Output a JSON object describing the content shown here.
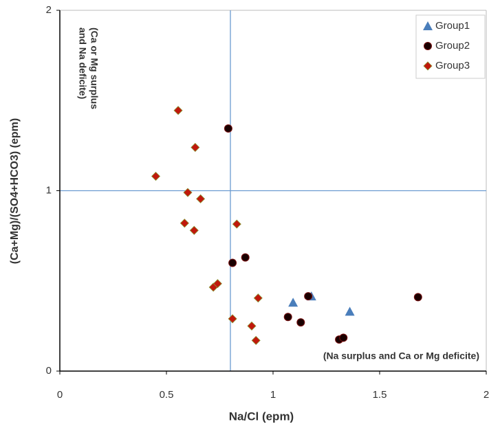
{
  "chart_data": {
    "type": "scatter",
    "x_label": "Na/Cl (epm)",
    "y_label": "(Ca+Mg)/(SO4+HCO3) (epm)",
    "xlim": [
      0,
      2
    ],
    "xticks": [
      0,
      0.5,
      1,
      1.5,
      2
    ],
    "ylim": [
      0,
      2
    ],
    "yticks": [
      0,
      1,
      2
    ],
    "vlines": [
      0.8
    ],
    "hlines": [
      1
    ],
    "annotations": [
      {
        "lines": [
          "(Ca or Mg surplus",
          "and Na deficite)"
        ]
      },
      {
        "lines": [
          "(Na surplus and Ca or Mg deficite)"
        ]
      }
    ],
    "legend": "top-right",
    "series": [
      {
        "name": "Group1",
        "marker": "triangle",
        "color": "#4a7ebb",
        "x": [
          1.094,
          1.18,
          1.36
        ],
        "y": [
          0.38,
          0.415,
          0.33
        ]
      },
      {
        "name": "Group2",
        "marker": "circle",
        "color": "#1a0000",
        "x": [
          0.79,
          0.81,
          0.87,
          1.07,
          1.165,
          1.13,
          1.31,
          1.33,
          1.68
        ],
        "y": [
          1.345,
          0.6,
          0.63,
          0.3,
          0.415,
          0.27,
          0.175,
          0.185,
          0.41
        ]
      },
      {
        "name": "Group3",
        "marker": "diamond",
        "color": "#c0180c",
        "x": [
          0.555,
          0.635,
          0.45,
          0.6,
          0.66,
          0.585,
          0.63,
          0.83,
          0.72,
          0.74,
          0.93,
          0.81,
          0.9,
          0.92
        ],
        "y": [
          1.445,
          1.24,
          1.08,
          0.99,
          0.955,
          0.82,
          0.78,
          0.815,
          0.465,
          0.485,
          0.405,
          0.29,
          0.25,
          0.17
        ]
      }
    ]
  }
}
